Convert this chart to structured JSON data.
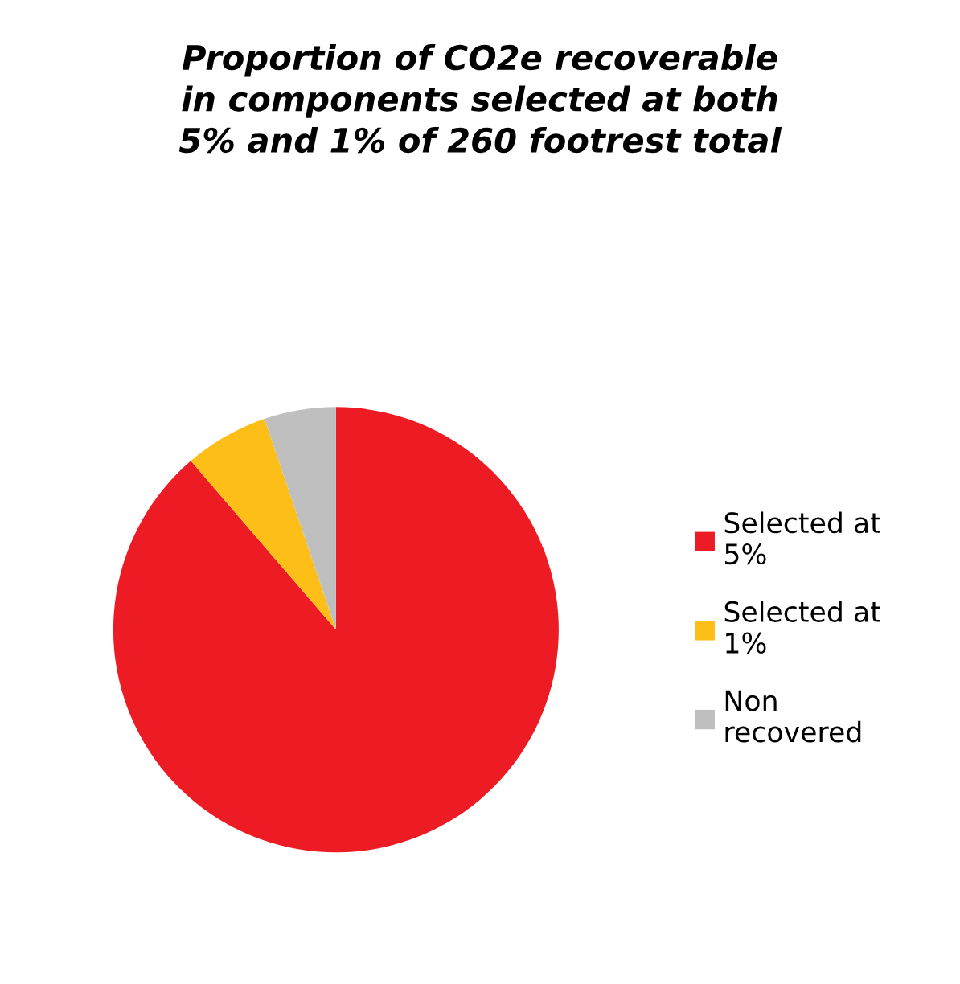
{
  "chart_data": {
    "type": "pie",
    "title": "Proportion of CO2e recoverable\nin components selected at both\n5% and 1% of 260 footrest total",
    "categories": [
      "Selected at 5%",
      "Selected at 1%",
      "Non recovered"
    ],
    "values": [
      88.7,
      6.1,
      5.2
    ],
    "colors": [
      "#ed1c24",
      "#fdbf17",
      "#bfbfbf"
    ],
    "legend": "right"
  }
}
